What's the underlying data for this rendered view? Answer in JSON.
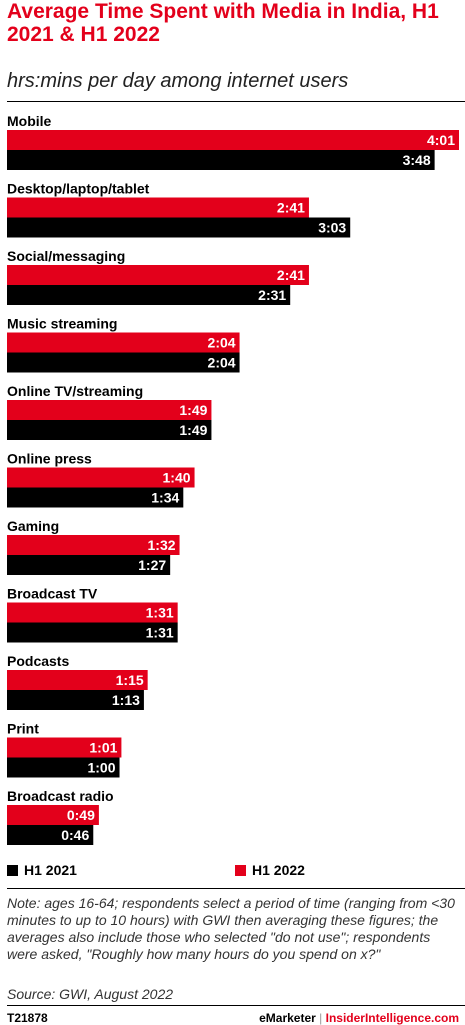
{
  "title": "Average Time Spent with Media in India, H1 2021 & H1 2022",
  "subtitle": "hrs:mins per day among internet users",
  "legend": {
    "h1_2021": "H1 2021",
    "h1_2022": "H1 2022"
  },
  "colors": {
    "h1_2021": "#000000",
    "h1_2022": "#e3001b",
    "accent": "#e3001b"
  },
  "note": "Note: ages 16-64; respondents select a period of time (ranging from <30 minutes to up to 10 hours) with GWI then averaging these figures; the averages also include those who selected \"do not use\"; respondents were asked, \"Roughly how many hours do you spend on x?\"",
  "source": "Source:  GWI, August 2022",
  "chart_id": "T21878",
  "brand": {
    "emarketer": "eMarketer",
    "separator": "|",
    "insider": "InsiderIntelligence.com"
  },
  "chart_data": {
    "type": "bar",
    "orientation": "horizontal",
    "title": "Average Time Spent with Media in India, H1 2021 & H1 2022",
    "subtitle": "hrs:mins per day among internet users",
    "unit": "minutes per day",
    "categories": [
      "Mobile",
      "Desktop/laptop/tablet",
      "Social/messaging",
      "Music streaming",
      "Online TV/streaming",
      "Online press",
      "Gaming",
      "Broadcast TV",
      "Podcasts",
      "Print",
      "Broadcast radio"
    ],
    "series": [
      {
        "name": "H1 2022",
        "color": "#e3001b",
        "values": [
          241,
          161,
          161,
          124,
          109,
          100,
          92,
          91,
          75,
          61,
          49
        ],
        "labels": [
          "4:01",
          "2:41",
          "2:41",
          "2:04",
          "1:49",
          "1:40",
          "1:32",
          "1:31",
          "1:15",
          "1:01",
          "0:49"
        ]
      },
      {
        "name": "H1 2021",
        "color": "#000000",
        "values": [
          228,
          183,
          151,
          124,
          109,
          94,
          87,
          91,
          73,
          60,
          46
        ],
        "labels": [
          "3:48",
          "3:03",
          "2:31",
          "2:04",
          "1:49",
          "1:34",
          "1:27",
          "1:31",
          "1:13",
          "1:00",
          "0:46"
        ]
      }
    ],
    "xlim": [
      0,
      241
    ],
    "grid": false,
    "legend_position": "bottom"
  }
}
